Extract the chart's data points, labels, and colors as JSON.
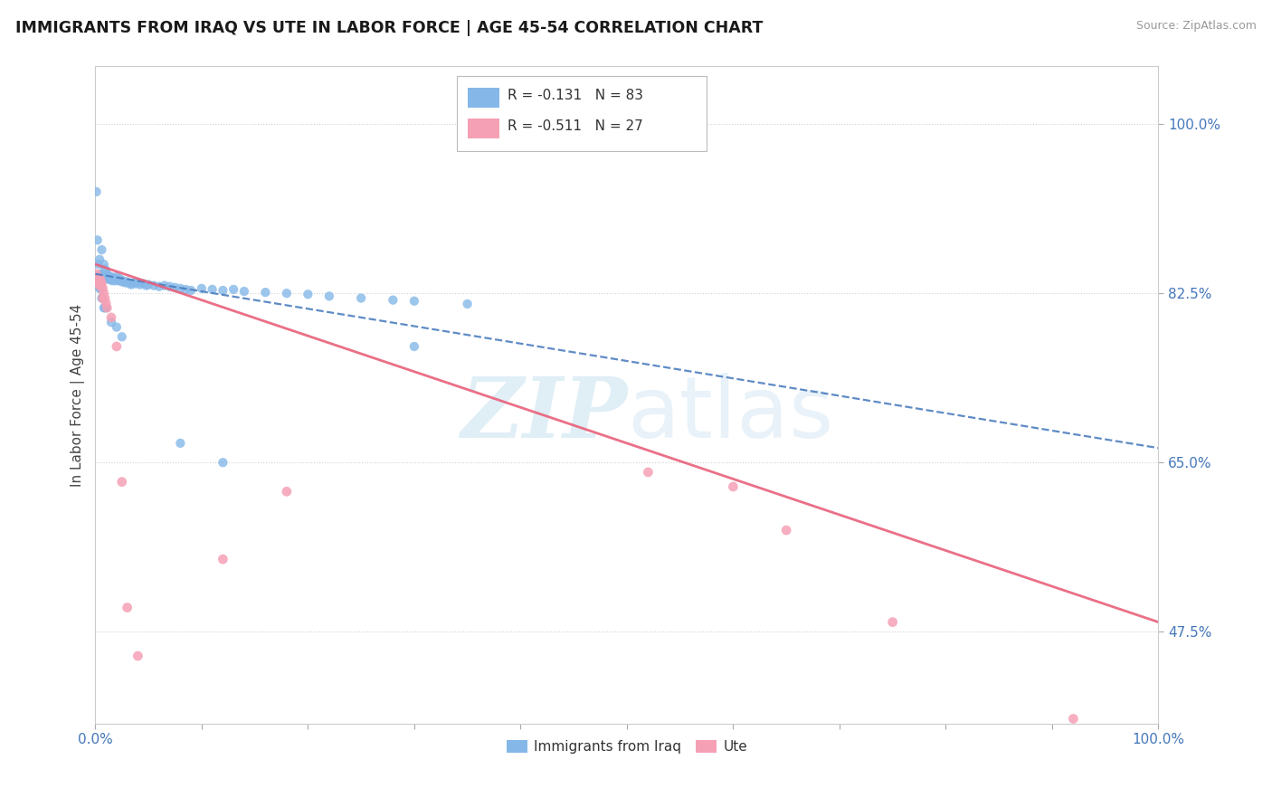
{
  "title": "IMMIGRANTS FROM IRAQ VS UTE IN LABOR FORCE | AGE 45-54 CORRELATION CHART",
  "source": "Source: ZipAtlas.com",
  "ylabel": "In Labor Force | Age 45-54",
  "ytick_labels": [
    "47.5%",
    "65.0%",
    "82.5%",
    "100.0%"
  ],
  "ytick_values": [
    0.475,
    0.65,
    0.825,
    1.0
  ],
  "xlim": [
    0.0,
    1.0
  ],
  "ylim": [
    0.38,
    1.06
  ],
  "legend_text1": "R = -0.131   N = 83",
  "legend_text2": "R = -0.511   N = 27",
  "legend_r1": "-0.131",
  "legend_n1": "83",
  "legend_r2": "-0.511",
  "legend_n2": "27",
  "iraq_color": "#85b8e8",
  "ute_color": "#f5a0b5",
  "iraq_line_color": "#4d7fbf",
  "ute_line_color": "#e8607a",
  "watermark_color": "#c8e0f0",
  "iraq_x": [
    0.001,
    0.002,
    0.003,
    0.004,
    0.005,
    0.006,
    0.006,
    0.007,
    0.008,
    0.008,
    0.009,
    0.009,
    0.01,
    0.01,
    0.011,
    0.011,
    0.012,
    0.012,
    0.013,
    0.013,
    0.014,
    0.014,
    0.015,
    0.015,
    0.016,
    0.016,
    0.017,
    0.018,
    0.019,
    0.02,
    0.02,
    0.021,
    0.022,
    0.023,
    0.024,
    0.025,
    0.026,
    0.027,
    0.028,
    0.03,
    0.032,
    0.034,
    0.036,
    0.038,
    0.04,
    0.042,
    0.045,
    0.048,
    0.05,
    0.055,
    0.06,
    0.065,
    0.07,
    0.075,
    0.08,
    0.085,
    0.09,
    0.1,
    0.11,
    0.12,
    0.13,
    0.14,
    0.16,
    0.18,
    0.2,
    0.22,
    0.25,
    0.28,
    0.3,
    0.35,
    0.004,
    0.005,
    0.006,
    0.007,
    0.008,
    0.009,
    0.01,
    0.015,
    0.02,
    0.025,
    0.08,
    0.12,
    0.3
  ],
  "iraq_y": [
    0.93,
    0.88,
    0.855,
    0.86,
    0.845,
    0.87,
    0.84,
    0.845,
    0.84,
    0.855,
    0.85,
    0.84,
    0.845,
    0.84,
    0.845,
    0.84,
    0.843,
    0.84,
    0.84,
    0.842,
    0.841,
    0.839,
    0.842,
    0.84,
    0.841,
    0.838,
    0.84,
    0.839,
    0.838,
    0.842,
    0.84,
    0.839,
    0.838,
    0.84,
    0.838,
    0.837,
    0.838,
    0.837,
    0.836,
    0.837,
    0.835,
    0.834,
    0.836,
    0.835,
    0.836,
    0.834,
    0.835,
    0.833,
    0.834,
    0.833,
    0.832,
    0.833,
    0.832,
    0.831,
    0.83,
    0.829,
    0.828,
    0.83,
    0.829,
    0.828,
    0.829,
    0.827,
    0.826,
    0.825,
    0.824,
    0.822,
    0.82,
    0.818,
    0.817,
    0.814,
    0.83,
    0.83,
    0.82,
    0.82,
    0.81,
    0.81,
    0.81,
    0.795,
    0.79,
    0.78,
    0.67,
    0.65,
    0.77
  ],
  "ute_x": [
    0.001,
    0.002,
    0.002,
    0.003,
    0.003,
    0.004,
    0.005,
    0.005,
    0.006,
    0.007,
    0.007,
    0.008,
    0.009,
    0.01,
    0.011,
    0.015,
    0.02,
    0.025,
    0.03,
    0.04,
    0.12,
    0.18,
    0.52,
    0.6,
    0.65,
    0.75,
    0.92
  ],
  "ute_y": [
    0.845,
    0.84,
    0.838,
    0.84,
    0.835,
    0.84,
    0.838,
    0.832,
    0.835,
    0.83,
    0.82,
    0.825,
    0.82,
    0.815,
    0.81,
    0.8,
    0.77,
    0.63,
    0.5,
    0.45,
    0.55,
    0.62,
    0.64,
    0.625,
    0.58,
    0.485,
    0.385
  ],
  "iraq_trendline_start_y": 0.845,
  "iraq_trendline_end_y": 0.665,
  "ute_trendline_start_y": 0.855,
  "ute_trendline_end_y": 0.485
}
